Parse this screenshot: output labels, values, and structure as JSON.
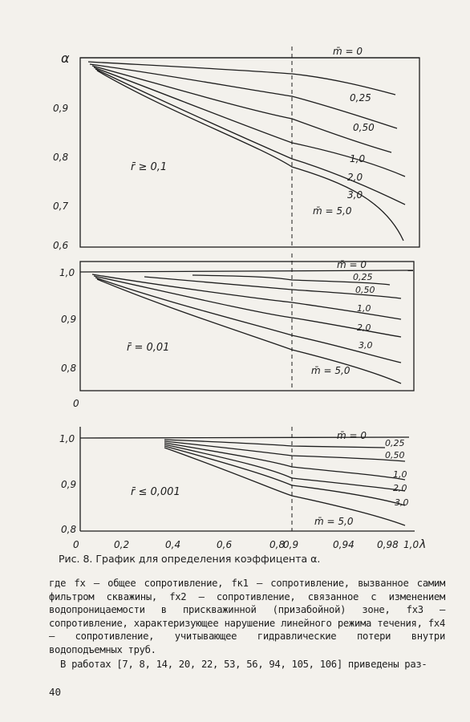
{
  "figure": {
    "x_ticks": [
      "0",
      "0,2",
      "0,4",
      "0,6",
      "0,8",
      "0,9",
      "0,94",
      "0,98",
      "1,0"
    ],
    "x_axis_symbol": "λ",
    "panels": [
      {
        "y_axis_symbol": "α",
        "y_ticks": [
          "0,9",
          "0,8",
          "0,7",
          "0,6"
        ],
        "parameter_label": "r̄ ≥ 0,1",
        "curve_labels": [
          "m̄ = 0",
          "0,25",
          "0,50",
          "1,0",
          "2,0",
          "3,0",
          "m̄ = 5,0"
        ]
      },
      {
        "y_ticks": [
          "1,0",
          "0,9",
          "0,8"
        ],
        "parameter_label": "r̄ = 0,01",
        "curve_labels": [
          "m̄ = 0",
          "0,25",
          "0,50",
          "1,0",
          "2,0",
          "3,0",
          "m̄ = 5,0"
        ]
      },
      {
        "y_ticks": [
          "1,0",
          "0,9",
          "0,8"
        ],
        "parameter_label": "r̄ ≤ 0,001",
        "curve_labels": [
          "m̄ = 0",
          "0,25",
          "0,50",
          "1,0",
          "2,0",
          "3,0",
          "m̄ = 5,0"
        ]
      }
    ]
  },
  "caption": "Рис. 8. График для определения коэффицента α.",
  "body": {
    "paragraph1": "где fx — общее сопротивление, fк1 — сопротивление, вызванное самим фильтром скважины, fх2 — сопротивление, связанное с изменением водопроницаемости в прискважинной (призабойной) зоне, fх3 — сопротивление, характеризующее нарушение линейного режима течения, fх4 — сопротивление, учитывающее гидравлические потери внутри водоподъемных труб.",
    "paragraph2": "В работах [7, 8, 14, 20, 22, 53, 56, 94, 105, 106] приведены раз-"
  },
  "page_number": "40"
}
